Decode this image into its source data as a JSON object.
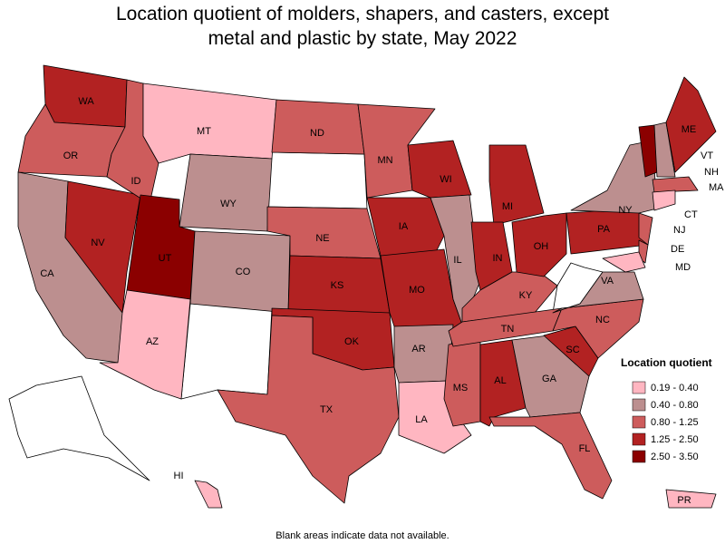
{
  "title": "Location quotient of molders, shapers, and casters, except metal and plastic by state, May 2022",
  "legend": {
    "title": "Location quotient",
    "items": [
      {
        "label": "0.19 - 0.40",
        "color": "#ffb6c1"
      },
      {
        "label": "0.40 - 0.80",
        "color": "#bc8f8f"
      },
      {
        "label": "0.80 - 1.25",
        "color": "#cd5c5c"
      },
      {
        "label": "1.25 - 2.50",
        "color": "#b22222"
      },
      {
        "label": "2.50 - 3.50",
        "color": "#8b0000"
      }
    ]
  },
  "states": [
    {
      "label": "WA",
      "class": 3
    },
    {
      "label": "OR",
      "class": 2
    },
    {
      "label": "CA",
      "class": 1
    },
    {
      "label": "NV",
      "class": 3
    },
    {
      "label": "ID",
      "class": 2
    },
    {
      "label": "MT",
      "class": 0
    },
    {
      "label": "WY",
      "class": 1
    },
    {
      "label": "UT",
      "class": 4
    },
    {
      "label": "AZ",
      "class": 0
    },
    {
      "label": "CO",
      "class": 1
    },
    {
      "label": "ND",
      "class": 2
    },
    {
      "label": "NE",
      "class": 2
    },
    {
      "label": "KS",
      "class": 3
    },
    {
      "label": "OK",
      "class": 3
    },
    {
      "label": "TX",
      "class": 2
    },
    {
      "label": "MN",
      "class": 2
    },
    {
      "label": "IA",
      "class": 3
    },
    {
      "label": "MO",
      "class": 3
    },
    {
      "label": "AR",
      "class": 1
    },
    {
      "label": "LA",
      "class": 0
    },
    {
      "label": "WI",
      "class": 3
    },
    {
      "label": "IL",
      "class": 1
    },
    {
      "label": "MS",
      "class": 2
    },
    {
      "label": "MI",
      "class": 3
    },
    {
      "label": "IN",
      "class": 3
    },
    {
      "label": "KY",
      "class": 2
    },
    {
      "label": "TN",
      "class": 2
    },
    {
      "label": "AL",
      "class": 3
    },
    {
      "label": "OH",
      "class": 3
    },
    {
      "label": "GA",
      "class": 1
    },
    {
      "label": "FL",
      "class": 2
    },
    {
      "label": "SC",
      "class": 3
    },
    {
      "label": "NC",
      "class": 2
    },
    {
      "label": "VA",
      "class": 1
    },
    {
      "label": "PA",
      "class": 3
    },
    {
      "label": "NY",
      "class": 1
    },
    {
      "label": "VT",
      "class": 4
    },
    {
      "label": "NH",
      "class": 1
    },
    {
      "label": "ME",
      "class": 3
    },
    {
      "label": "MA",
      "class": 2
    },
    {
      "label": "CT",
      "class": 0
    },
    {
      "label": "NJ",
      "class": 2
    },
    {
      "label": "DE",
      "class": 2
    },
    {
      "label": "MD",
      "class": 0
    },
    {
      "label": "HI",
      "class": 0
    },
    {
      "label": "PR",
      "class": 0
    }
  ],
  "footnote": "Blank areas indicate data not available."
}
